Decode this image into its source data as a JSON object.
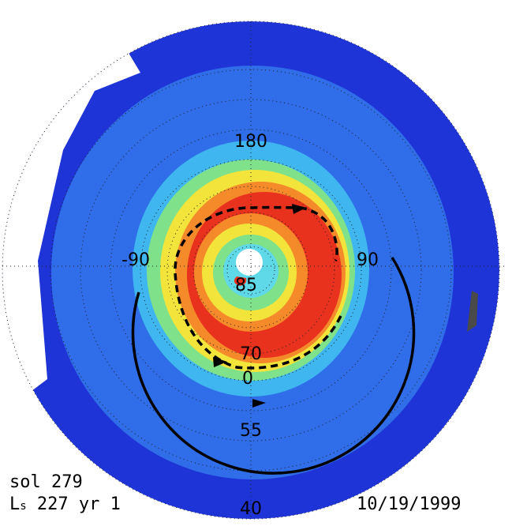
{
  "map": {
    "latitude_labels": [
      "85",
      "70",
      "55",
      "40"
    ],
    "longitude_labels": [
      "180",
      "90",
      "0",
      "-90"
    ],
    "colors": {
      "outer": "#1e34d6",
      "ring_blue": "#2f6ee8",
      "ring_cyan": "#3fb6f0",
      "ring_green": "#7fe28a",
      "ring_yellow": "#f2e43a",
      "ring_orange": "#f58a2a",
      "ring_red": "#e8321e",
      "inner_cyan": "#5fd8e8",
      "pole_white": "#ffffff",
      "missing_data": "#ffffff",
      "dark_patch": "#4a4a4a"
    },
    "arrows": [
      {
        "style": "solid",
        "direction": "counterclockwise"
      },
      {
        "style": "dashed",
        "direction": "clockwise"
      }
    ]
  },
  "info": {
    "sol_text": "sol 279",
    "ls_prefix": "L",
    "ls_sub": "s",
    "ls_rest": " 227 yr 1",
    "date_text": "10/19/1999"
  }
}
